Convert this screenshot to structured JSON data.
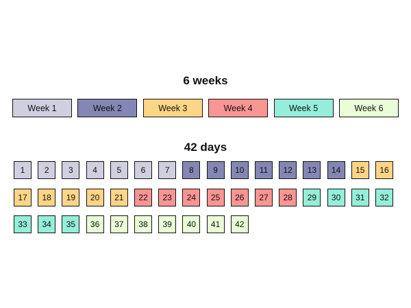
{
  "titles": {
    "weeks": "6 weeks",
    "days": "42 days"
  },
  "colors": {
    "week_1": "#cfcfe0",
    "week_2": "#8487b3",
    "week_3": "#fcd586",
    "week_4": "#f99593",
    "week_5": "#94eed9",
    "week_6": "#e9fdd6",
    "border": "#111111"
  },
  "weeks": [
    {
      "label": "Week 1",
      "color_key": "week_1"
    },
    {
      "label": "Week 2",
      "color_key": "week_2"
    },
    {
      "label": "Week 3",
      "color_key": "week_3"
    },
    {
      "label": "Week 4",
      "color_key": "week_4"
    },
    {
      "label": "Week 5",
      "color_key": "week_5"
    },
    {
      "label": "Week 6",
      "color_key": "week_6"
    }
  ],
  "days": [
    "1",
    "2",
    "3",
    "4",
    "5",
    "6",
    "7",
    "8",
    "9",
    "10",
    "11",
    "12",
    "13",
    "14",
    "15",
    "16",
    "17",
    "18",
    "19",
    "20",
    "21",
    "22",
    "23",
    "24",
    "25",
    "26",
    "27",
    "28",
    "29",
    "30",
    "31",
    "32",
    "33",
    "34",
    "35",
    "36",
    "37",
    "38",
    "39",
    "40",
    "41",
    "42"
  ]
}
